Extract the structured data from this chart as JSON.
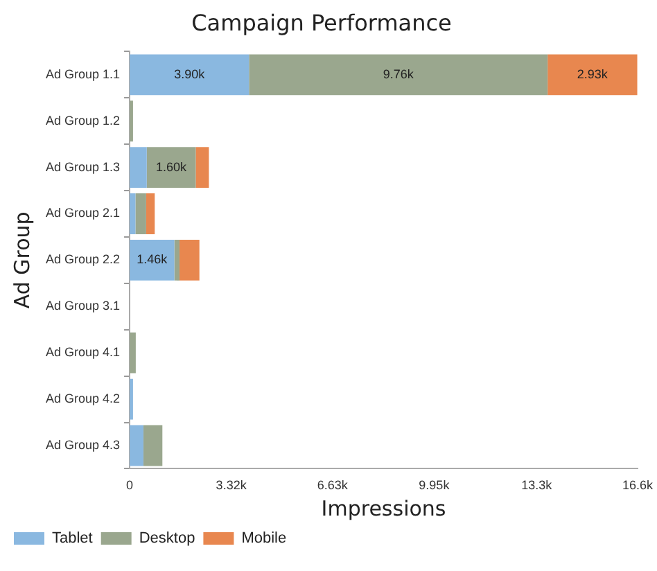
{
  "chart_data": {
    "type": "bar",
    "orientation": "horizontal",
    "stacked": true,
    "title": "Campaign Performance",
    "xlabel": "Impressions",
    "ylabel": "Ad Group",
    "categories": [
      "Ad Group 1.1",
      "Ad Group 1.2",
      "Ad Group 1.3",
      "Ad Group 2.1",
      "Ad Group 2.2",
      "Ad Group 3.1",
      "Ad Group 4.1",
      "Ad Group 4.2",
      "Ad Group 4.3"
    ],
    "series": [
      {
        "name": "Tablet",
        "color": "#8ab8e0",
        "values": [
          3900,
          null,
          560,
          190,
          1460,
          0,
          0,
          110,
          450
        ],
        "value_labels": [
          "3.90k",
          null,
          null,
          null,
          "1.46k",
          null,
          null,
          null,
          null
        ]
      },
      {
        "name": "Desktop",
        "color": "#9aa78e",
        "values": [
          9760,
          110,
          1600,
          350,
          170,
          0,
          200,
          0,
          620
        ],
        "value_labels": [
          "9.76k",
          null,
          "1.60k",
          null,
          null,
          null,
          null,
          null,
          null
        ]
      },
      {
        "name": "Mobile",
        "color": "#e8874f",
        "values": [
          2930,
          0,
          430,
          280,
          650,
          0,
          0,
          0,
          0
        ],
        "value_labels": [
          "2.93k",
          null,
          null,
          null,
          null,
          null,
          null,
          null,
          null
        ]
      }
    ],
    "xlim": [
      0,
      16600
    ],
    "xticks": [
      0,
      {
        "value": 3320,
        "label": "3.32k"
      },
      {
        "value": 6630,
        "label": "6.63k"
      },
      {
        "value": 9950,
        "label": "9.95k"
      },
      {
        "value": 13300,
        "label": "13.3k"
      },
      {
        "value": 16600,
        "label": "16.6k"
      }
    ],
    "grid": false,
    "legend": "bottom left"
  }
}
